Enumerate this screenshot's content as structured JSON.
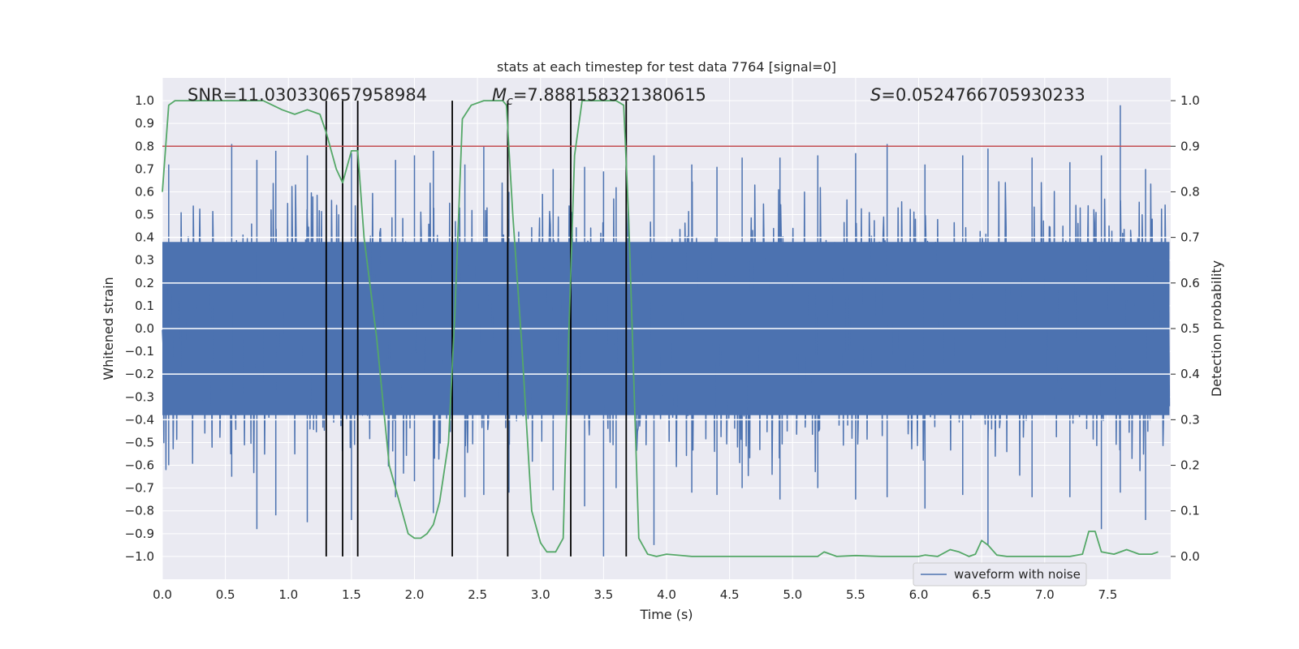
{
  "chart_data": {
    "type": "line",
    "title": "stats at each timestep for test data 7764 [signal=0]",
    "xlabel": "Time (s)",
    "ylabel": "Whitened strain",
    "ylabel_right": "Detection probability",
    "xlim": [
      0.0,
      8.0
    ],
    "ylim": [
      -1.1,
      1.1
    ],
    "ylim_right": [
      -0.05,
      1.05
    ],
    "x_ticks": [
      "0.0",
      "0.5",
      "1.0",
      "1.5",
      "2.0",
      "2.5",
      "3.0",
      "3.5",
      "4.0",
      "4.5",
      "5.0",
      "5.5",
      "6.0",
      "6.5",
      "7.0",
      "7.5"
    ],
    "x_tick_values": [
      0.0,
      0.5,
      1.0,
      1.5,
      2.0,
      2.5,
      3.0,
      3.5,
      4.0,
      4.5,
      5.0,
      5.5,
      6.0,
      6.5,
      7.0,
      7.5
    ],
    "y_ticks": [
      "1.0",
      "0.9",
      "0.8",
      "0.7",
      "0.6",
      "0.5",
      "0.4",
      "0.3",
      "0.2",
      "0.1",
      "0.0",
      "−0.1",
      "−0.2",
      "−0.3",
      "−0.4",
      "−0.5",
      "−0.6",
      "−0.7",
      "−0.8",
      "−0.9",
      "−1.0"
    ],
    "y_tick_values": [
      1.0,
      0.9,
      0.8,
      0.7,
      0.6,
      0.5,
      0.4,
      0.3,
      0.2,
      0.1,
      0.0,
      -0.1,
      -0.2,
      -0.3,
      -0.4,
      -0.5,
      -0.6,
      -0.7,
      -0.8,
      -0.9,
      -1.0
    ],
    "y_ticks_right": [
      "1.0",
      "0.9",
      "0.8",
      "0.7",
      "0.6",
      "0.5",
      "0.4",
      "0.3",
      "0.2",
      "0.1",
      "0.0"
    ],
    "y_tick_values_right": [
      1.0,
      0.9,
      0.8,
      0.7,
      0.6,
      0.5,
      0.4,
      0.3,
      0.2,
      0.1,
      0.0
    ],
    "annotations": {
      "snr": "SNR=11.030330657958984",
      "mc_symbol": "M",
      "mc_sub": "c",
      "mc_value": "=7.888158321380615",
      "s_symbol": "S",
      "s_value": "=0.0524766705930233"
    },
    "legend": {
      "label": "waveform with noise",
      "placement": "lower-right"
    },
    "threshold": {
      "value": 0.9,
      "axis": "right",
      "color": "#c44e52"
    },
    "vertical_markers": [
      1.3,
      1.43,
      1.55,
      2.3,
      2.74,
      3.24,
      3.68
    ],
    "waveform": {
      "name": "waveform with noise",
      "color": "#4c72b0",
      "bulk_envelope": 0.38,
      "spike_times": [
        0.05,
        0.55,
        0.75,
        0.9,
        1.15,
        1.3,
        1.5,
        1.85,
        2.0,
        2.15,
        2.4,
        2.55,
        2.75,
        3.1,
        3.35,
        3.5,
        3.6,
        3.9,
        4.2,
        4.4,
        4.6,
        4.9,
        5.2,
        5.5,
        5.75,
        6.05,
        6.35,
        6.55,
        6.9,
        7.2,
        7.45,
        7.6,
        7.8
      ],
      "spike_max": [
        0.72,
        0.81,
        0.74,
        0.78,
        0.76,
        0.78,
        0.77,
        0.74,
        0.76,
        0.78,
        0.72,
        0.8,
        0.6,
        0.7,
        0.71,
        0.69,
        0.62,
        0.76,
        0.72,
        0.71,
        0.75,
        0.75,
        0.76,
        0.77,
        0.81,
        0.72,
        0.76,
        0.79,
        0.75,
        0.73,
        0.76,
        0.98,
        0.7
      ],
      "spike_min": [
        -0.6,
        -0.65,
        -0.88,
        -0.82,
        -0.85,
        -0.82,
        -0.84,
        -0.74,
        -0.67,
        -0.81,
        -0.74,
        -0.73,
        -0.72,
        -0.71,
        -0.78,
        -1.0,
        -0.7,
        -0.95,
        -0.72,
        -0.73,
        -0.7,
        -0.75,
        -0.7,
        -0.75,
        -0.74,
        -0.79,
        -0.73,
        -0.95,
        -0.74,
        -0.74,
        -0.88,
        -0.72,
        -0.84
      ]
    },
    "series": [
      {
        "name": "detection probability",
        "axis": "right",
        "color": "#55a868",
        "x": [
          0.0,
          0.05,
          0.1,
          0.15,
          0.2,
          0.5,
          0.8,
          0.95,
          1.05,
          1.15,
          1.25,
          1.3,
          1.38,
          1.43,
          1.5,
          1.55,
          1.6,
          1.7,
          1.8,
          1.9,
          1.95,
          2.0,
          2.05,
          2.1,
          2.15,
          2.2,
          2.27,
          2.32,
          2.38,
          2.45,
          2.55,
          2.62,
          2.7,
          2.73,
          2.78,
          2.85,
          2.93,
          3.0,
          3.05,
          3.12,
          3.18,
          3.22,
          3.27,
          3.33,
          3.4,
          3.5,
          3.6,
          3.66,
          3.7,
          3.78,
          3.85,
          3.92,
          4.0,
          4.2,
          4.5,
          5.0,
          5.2,
          5.25,
          5.35,
          5.5,
          5.7,
          5.9,
          6.0,
          6.05,
          6.15,
          6.25,
          6.32,
          6.4,
          6.45,
          6.5,
          6.55,
          6.62,
          6.7,
          6.8,
          7.2,
          7.3,
          7.35,
          7.4,
          7.45,
          7.55,
          7.65,
          7.75,
          7.85,
          7.9
        ],
        "values": [
          0.8,
          0.99,
          1.0,
          1.0,
          1.0,
          1.0,
          1.0,
          0.98,
          0.97,
          0.98,
          0.97,
          0.93,
          0.85,
          0.82,
          0.89,
          0.89,
          0.7,
          0.48,
          0.2,
          0.1,
          0.05,
          0.04,
          0.04,
          0.05,
          0.07,
          0.12,
          0.25,
          0.53,
          0.96,
          0.99,
          1.0,
          1.0,
          1.0,
          0.99,
          0.75,
          0.47,
          0.1,
          0.03,
          0.01,
          0.01,
          0.04,
          0.45,
          0.88,
          1.0,
          1.0,
          1.0,
          1.0,
          0.99,
          0.74,
          0.04,
          0.005,
          0.0,
          0.005,
          0.0,
          0.0,
          0.0,
          0.0,
          0.01,
          0.0,
          0.002,
          0.0,
          0.0,
          0.0,
          0.003,
          0.0,
          0.015,
          0.01,
          0.0,
          0.005,
          0.035,
          0.025,
          0.003,
          0.0,
          0.0,
          0.0,
          0.005,
          0.055,
          0.055,
          0.01,
          0.005,
          0.015,
          0.005,
          0.005,
          0.01
        ]
      }
    ]
  }
}
